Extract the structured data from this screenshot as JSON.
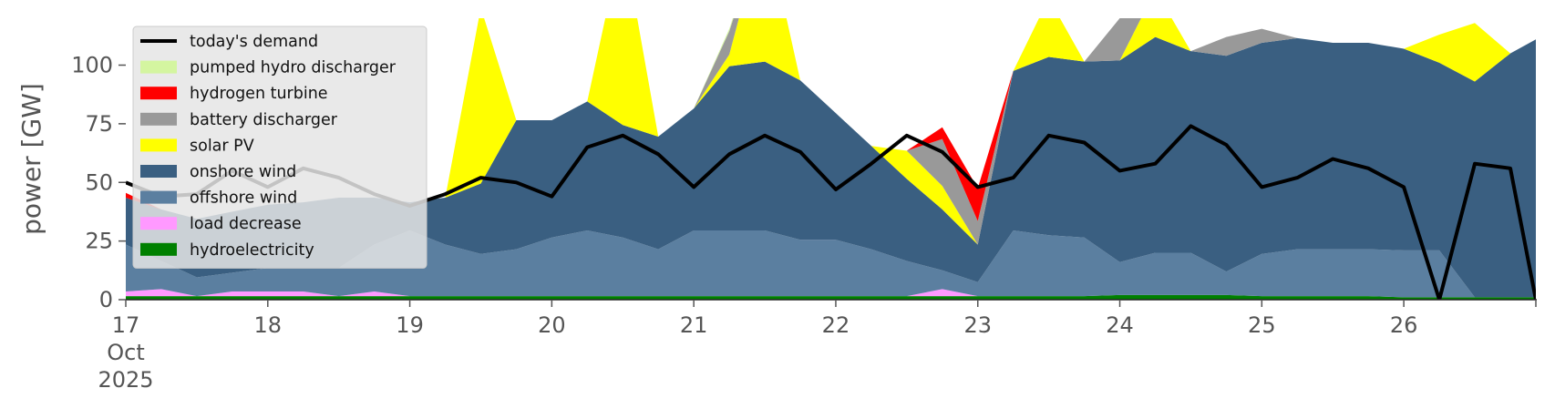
{
  "chart_data": {
    "type": "area",
    "ylabel": "power [GW]",
    "xlabel": "",
    "ylim": [
      0,
      120
    ],
    "yticks": [
      0,
      25,
      50,
      75,
      100
    ],
    "xlim": [
      0,
      9.93
    ],
    "xticks": [
      {
        "x": 0,
        "label": "17",
        "sub1": "Oct",
        "sub2": "2025"
      },
      {
        "x": 1,
        "label": "18"
      },
      {
        "x": 2,
        "label": "19"
      },
      {
        "x": 3,
        "label": "20"
      },
      {
        "x": 4,
        "label": "21"
      },
      {
        "x": 5,
        "label": "22"
      },
      {
        "x": 6,
        "label": "23"
      },
      {
        "x": 7,
        "label": "24"
      },
      {
        "x": 8,
        "label": "25"
      },
      {
        "x": 9,
        "label": "26"
      }
    ],
    "x_unit_note_values": "days since 17 Oct 2025",
    "legend_position": "upper-left",
    "grid": false,
    "x": [
      0,
      0.25,
      0.5,
      0.75,
      1,
      1.25,
      1.5,
      1.75,
      2,
      2.25,
      2.5,
      2.75,
      3,
      3.25,
      3.5,
      3.75,
      4,
      4.25,
      4.5,
      4.75,
      5,
      5.25,
      5.5,
      5.75,
      6,
      6.25,
      6.5,
      6.75,
      7,
      7.25,
      7.5,
      7.75,
      8,
      8.25,
      8.5,
      8.75,
      9,
      9.25,
      9.5,
      9.75,
      9.93
    ],
    "series": [
      {
        "name": "hydroelectricity",
        "color": "#008000",
        "values": [
          1.5,
          1.5,
          1.5,
          1.5,
          1.5,
          1.5,
          1.5,
          1.5,
          1.5,
          1.5,
          1.5,
          1.5,
          1.5,
          1.5,
          1.5,
          1.5,
          1.5,
          1.5,
          1.5,
          1.5,
          1.5,
          1.5,
          1.5,
          1.5,
          1.5,
          1.5,
          1.5,
          1.5,
          2,
          2,
          2,
          2,
          1.5,
          1.5,
          1.5,
          1.5,
          1,
          1,
          1,
          1,
          1
        ]
      },
      {
        "name": "load decrease",
        "color": "#ff99ff",
        "values": [
          2,
          3,
          0,
          2,
          2,
          2,
          0,
          2,
          0,
          0,
          0,
          0,
          0,
          0,
          0,
          0,
          0,
          0,
          0,
          0,
          0,
          0,
          0,
          3,
          0,
          0,
          0,
          0,
          0,
          0,
          0,
          0,
          0,
          0,
          0,
          0,
          0,
          0,
          0,
          0,
          0
        ]
      },
      {
        "name": "offshore wind",
        "color": "#5b7fa0",
        "values": [
          20,
          12,
          8,
          8,
          10,
          10,
          12,
          20,
          28,
          22,
          18,
          20,
          25,
          28,
          25,
          20,
          28,
          28,
          28,
          24,
          24,
          20,
          15,
          8,
          6,
          28,
          26,
          25,
          14,
          18,
          18,
          10,
          18,
          20,
          20,
          20,
          20,
          20,
          0,
          0,
          0
        ]
      },
      {
        "name": "onshore wind",
        "color": "#3a5f81",
        "values": [
          20,
          22,
          25,
          26,
          27,
          28,
          30,
          20,
          12,
          20,
          30,
          55,
          50,
          55,
          48,
          48,
          52,
          70,
          72,
          68,
          54,
          44,
          35,
          26,
          16,
          68,
          76,
          75,
          86,
          92,
          86,
          92,
          90,
          90,
          88,
          88,
          86,
          80,
          92,
          104,
          110
        ]
      },
      {
        "name": "solar PV",
        "color": "#ffff00",
        "values": [
          0,
          0,
          0,
          0,
          0,
          0,
          0,
          0,
          0,
          0,
          75,
          0,
          0,
          0,
          80,
          0,
          0,
          5,
          60,
          0,
          0,
          0,
          12,
          10,
          0,
          0,
          25,
          0,
          0,
          20,
          0,
          0,
          0,
          0,
          0,
          0,
          0,
          12,
          25,
          0,
          0
        ]
      },
      {
        "name": "battery discharger",
        "color": "#999999",
        "values": [
          0,
          0,
          0,
          0,
          0,
          0,
          0,
          0,
          0,
          0,
          0,
          0,
          0,
          0,
          0,
          0,
          0,
          10,
          0,
          0,
          0,
          0,
          0,
          20,
          10,
          0,
          0,
          0,
          18,
          0,
          0,
          8,
          6,
          0,
          0,
          0,
          0,
          0,
          0,
          0,
          0
        ]
      },
      {
        "name": "hydrogen turbine",
        "color": "#ff0000",
        "values": [
          2,
          0,
          0,
          0,
          0,
          0,
          0,
          0,
          0,
          0,
          0,
          0,
          0,
          0,
          0,
          0,
          0,
          0,
          0,
          0,
          0,
          0,
          0,
          5,
          14,
          0,
          0,
          0,
          0,
          0,
          0,
          0,
          0,
          0,
          0,
          0,
          0,
          0,
          0,
          0,
          0
        ]
      },
      {
        "name": "pumped hydro discharger",
        "color": "#d4f5a0",
        "values": [
          0,
          0,
          0,
          0,
          0,
          0,
          0,
          0,
          0,
          0,
          0,
          0,
          0,
          0,
          0,
          0,
          0,
          1,
          0,
          0,
          0,
          0,
          0,
          0,
          0,
          0,
          0,
          0,
          0,
          0,
          0,
          0,
          0,
          0,
          0,
          0,
          0,
          0,
          0,
          0,
          0
        ]
      }
    ],
    "demand": {
      "name": "today's demand",
      "color": "#000000",
      "values": [
        50,
        44,
        45,
        55,
        48,
        56,
        52,
        45,
        40,
        45,
        52,
        50,
        44,
        65,
        70,
        62,
        48,
        62,
        70,
        63,
        47,
        58,
        70,
        63,
        48,
        52,
        70,
        67,
        55,
        58,
        74,
        66,
        48,
        52,
        60,
        56,
        48,
        0,
        58,
        56,
        0
      ]
    }
  }
}
